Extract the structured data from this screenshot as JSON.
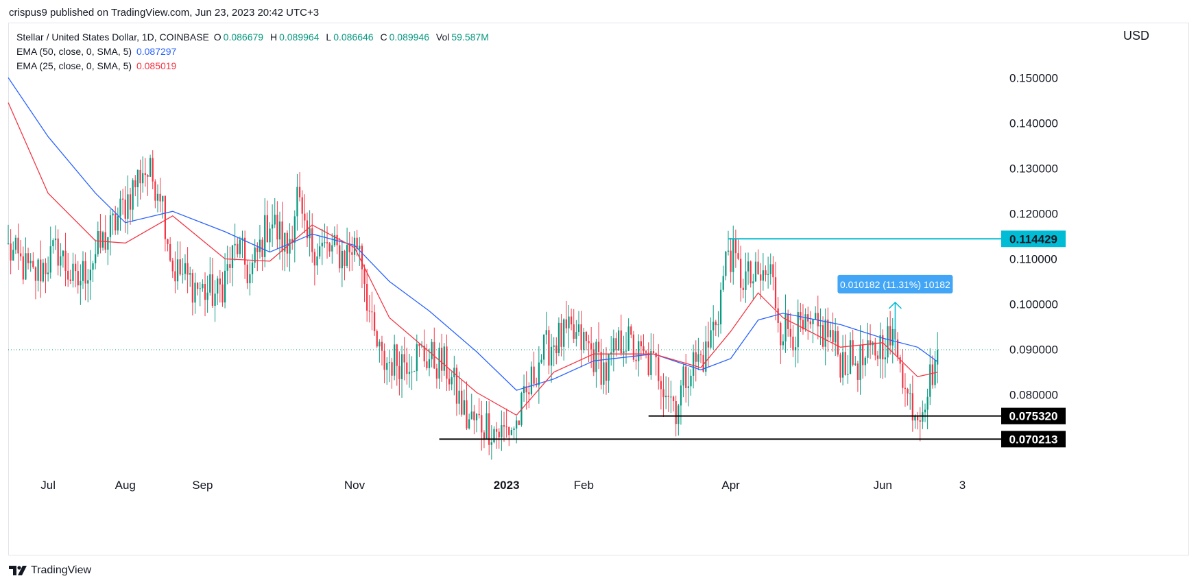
{
  "header": {
    "published": "crispus9 published on TradingView.com, Jun 23, 2023 20:42 UTC+3"
  },
  "legend": {
    "title": "Stellar / United States Dollar, 1D, COINBASE",
    "ohlc": [
      {
        "key": "O",
        "value": "0.086679"
      },
      {
        "key": "H",
        "value": "0.089964"
      },
      {
        "key": "L",
        "value": "0.086646"
      },
      {
        "key": "C",
        "value": "0.089946"
      },
      {
        "key": "Vol",
        "value": "59.587M"
      }
    ],
    "ema50_label": "EMA (50, close, 0, SMA, 5)",
    "ema50_value": "0.087297",
    "ema25_label": "EMA (25, close, 0, SMA, 5)",
    "ema25_value": "0.085019"
  },
  "currency": "USD",
  "footer": {
    "brand": "TradingView"
  },
  "colors": {
    "up": "#089981",
    "down": "#f23645",
    "ema50": "#2962ff",
    "ema25": "#f23645",
    "cyan": "#00bcd4",
    "measure": "#42a5f5",
    "black": "#000000"
  },
  "chart_data": {
    "type": "candlestick",
    "symbol": "Stellar / United States Dollar",
    "interval": "1D",
    "exchange": "COINBASE",
    "ylim": [
      0.063,
      0.162
    ],
    "y_ticks": [
      "0.150000",
      "0.140000",
      "0.130000",
      "0.120000",
      "0.110000",
      "0.100000",
      "0.090000",
      "0.080000"
    ],
    "y_tick_values": [
      0.15,
      0.14,
      0.13,
      0.12,
      0.11,
      0.1,
      0.09,
      0.08
    ],
    "x_ticks": [
      {
        "label": "Jul",
        "date": "2022-07-01"
      },
      {
        "label": "Aug",
        "date": "2022-08-01"
      },
      {
        "label": "Sep",
        "date": "2022-09-01"
      },
      {
        "label": "Nov",
        "date": "2022-11-01"
      },
      {
        "label": "2023",
        "date": "2023-01-01",
        "bold": true
      },
      {
        "label": "Feb",
        "date": "2023-02-01"
      },
      {
        "label": "Apr",
        "date": "2023-04-01"
      },
      {
        "label": "Jun",
        "date": "2023-06-01"
      },
      {
        "label": "3",
        "date": "2023-07-03"
      }
    ],
    "x_range": [
      "2022-06-15",
      "2023-07-18"
    ],
    "current_price": 0.089946,
    "price_series": [
      {
        "date": "2022-06-15",
        "close": 0.112
      },
      {
        "date": "2022-06-25",
        "close": 0.106
      },
      {
        "date": "2022-07-05",
        "close": 0.112
      },
      {
        "date": "2022-07-12",
        "close": 0.104
      },
      {
        "date": "2022-07-20",
        "close": 0.111
      },
      {
        "date": "2022-07-28",
        "close": 0.118
      },
      {
        "date": "2022-08-08",
        "close": 0.13
      },
      {
        "date": "2022-08-15",
        "close": 0.126
      },
      {
        "date": "2022-08-20",
        "close": 0.108
      },
      {
        "date": "2022-09-01",
        "close": 0.103
      },
      {
        "date": "2022-09-07",
        "close": 0.102
      },
      {
        "date": "2022-09-15",
        "close": 0.113
      },
      {
        "date": "2022-09-20",
        "close": 0.106
      },
      {
        "date": "2022-09-28",
        "close": 0.119
      },
      {
        "date": "2022-10-05",
        "close": 0.112
      },
      {
        "date": "2022-10-09",
        "close": 0.124
      },
      {
        "date": "2022-10-12",
        "close": 0.114
      },
      {
        "date": "2022-10-20",
        "close": 0.112
      },
      {
        "date": "2022-10-28",
        "close": 0.111
      },
      {
        "date": "2022-11-03",
        "close": 0.114
      },
      {
        "date": "2022-11-08",
        "close": 0.094
      },
      {
        "date": "2022-11-12",
        "close": 0.087
      },
      {
        "date": "2022-11-20",
        "close": 0.088
      },
      {
        "date": "2022-11-28",
        "close": 0.089
      },
      {
        "date": "2022-12-08",
        "close": 0.086
      },
      {
        "date": "2022-12-16",
        "close": 0.0745
      },
      {
        "date": "2022-12-24",
        "close": 0.0735
      },
      {
        "date": "2022-12-30",
        "close": 0.0715
      },
      {
        "date": "2023-01-05",
        "close": 0.0735
      },
      {
        "date": "2023-01-10",
        "close": 0.081
      },
      {
        "date": "2023-01-14",
        "close": 0.088
      },
      {
        "date": "2023-01-20",
        "close": 0.092
      },
      {
        "date": "2023-01-27",
        "close": 0.093
      },
      {
        "date": "2023-02-02",
        "close": 0.091
      },
      {
        "date": "2023-02-10",
        "close": 0.085
      },
      {
        "date": "2023-02-17",
        "close": 0.093
      },
      {
        "date": "2023-02-22",
        "close": 0.089
      },
      {
        "date": "2023-03-03",
        "close": 0.0855
      },
      {
        "date": "2023-03-10",
        "close": 0.0775
      },
      {
        "date": "2023-03-15",
        "close": 0.086
      },
      {
        "date": "2023-03-22",
        "close": 0.089
      },
      {
        "date": "2023-03-27",
        "close": 0.099
      },
      {
        "date": "2023-03-31",
        "close": 0.1125
      },
      {
        "date": "2023-04-05",
        "close": 0.106
      },
      {
        "date": "2023-04-12",
        "close": 0.105
      },
      {
        "date": "2023-04-17",
        "close": 0.107
      },
      {
        "date": "2023-04-21",
        "close": 0.095
      },
      {
        "date": "2023-05-01",
        "close": 0.0935
      },
      {
        "date": "2023-05-10",
        "close": 0.094
      },
      {
        "date": "2023-05-15",
        "close": 0.088
      },
      {
        "date": "2023-05-25",
        "close": 0.087
      },
      {
        "date": "2023-06-02",
        "close": 0.0925
      },
      {
        "date": "2023-06-08",
        "close": 0.09
      },
      {
        "date": "2023-06-10",
        "close": 0.0805
      },
      {
        "date": "2023-06-15",
        "close": 0.0765
      },
      {
        "date": "2023-06-19",
        "close": 0.0815
      },
      {
        "date": "2023-06-23",
        "close": 0.0899
      }
    ],
    "ema50": [
      {
        "date": "2022-06-15",
        "value": 0.15
      },
      {
        "date": "2022-07-01",
        "value": 0.137
      },
      {
        "date": "2022-07-20",
        "value": 0.1245
      },
      {
        "date": "2022-08-01",
        "value": 0.118
      },
      {
        "date": "2022-08-20",
        "value": 0.1205
      },
      {
        "date": "2022-09-10",
        "value": 0.116
      },
      {
        "date": "2022-09-28",
        "value": 0.1115
      },
      {
        "date": "2022-10-15",
        "value": 0.1155
      },
      {
        "date": "2022-11-01",
        "value": 0.113
      },
      {
        "date": "2022-11-15",
        "value": 0.105
      },
      {
        "date": "2022-12-01",
        "value": 0.0985
      },
      {
        "date": "2022-12-20",
        "value": 0.0895
      },
      {
        "date": "2023-01-05",
        "value": 0.081
      },
      {
        "date": "2023-01-20",
        "value": 0.0835
      },
      {
        "date": "2023-02-05",
        "value": 0.0875
      },
      {
        "date": "2023-03-01",
        "value": 0.089
      },
      {
        "date": "2023-03-20",
        "value": 0.0855
      },
      {
        "date": "2023-04-01",
        "value": 0.088
      },
      {
        "date": "2023-04-12",
        "value": 0.0965
      },
      {
        "date": "2023-04-22",
        "value": 0.098
      },
      {
        "date": "2023-05-15",
        "value": 0.0955
      },
      {
        "date": "2023-06-01",
        "value": 0.0925
      },
      {
        "date": "2023-06-15",
        "value": 0.0905
      },
      {
        "date": "2023-06-23",
        "value": 0.0873
      }
    ],
    "ema25": [
      {
        "date": "2022-06-15",
        "value": 0.1445
      },
      {
        "date": "2022-07-01",
        "value": 0.1245
      },
      {
        "date": "2022-07-20",
        "value": 0.114
      },
      {
        "date": "2022-08-01",
        "value": 0.1135
      },
      {
        "date": "2022-08-20",
        "value": 0.1195
      },
      {
        "date": "2022-09-10",
        "value": 0.11
      },
      {
        "date": "2022-09-28",
        "value": 0.1095
      },
      {
        "date": "2022-10-15",
        "value": 0.1175
      },
      {
        "date": "2022-11-01",
        "value": 0.1125
      },
      {
        "date": "2022-11-15",
        "value": 0.097
      },
      {
        "date": "2022-12-01",
        "value": 0.0895
      },
      {
        "date": "2022-12-20",
        "value": 0.0805
      },
      {
        "date": "2023-01-05",
        "value": 0.0755
      },
      {
        "date": "2023-01-20",
        "value": 0.085
      },
      {
        "date": "2023-02-05",
        "value": 0.089
      },
      {
        "date": "2023-03-01",
        "value": 0.089
      },
      {
        "date": "2023-03-20",
        "value": 0.086
      },
      {
        "date": "2023-04-01",
        "value": 0.094
      },
      {
        "date": "2023-04-12",
        "value": 0.1025
      },
      {
        "date": "2023-04-22",
        "value": 0.097
      },
      {
        "date": "2023-05-15",
        "value": 0.0905
      },
      {
        "date": "2023-06-01",
        "value": 0.0915
      },
      {
        "date": "2023-06-15",
        "value": 0.084
      },
      {
        "date": "2023-06-23",
        "value": 0.085
      }
    ],
    "annotations": {
      "resistance": {
        "value": 0.114429,
        "label": "0.114429",
        "from_date": "2023-03-31"
      },
      "support_1": {
        "value": 0.07532,
        "label": "0.075320",
        "from_date": "2023-02-27"
      },
      "support_2": {
        "value": 0.070213,
        "label": "0.070213",
        "from_date": "2022-12-05"
      },
      "measure": {
        "label": "0.010182 (11.31%) 10182",
        "from_date": "2023-06-06",
        "from_value": 0.0903,
        "to_value": 0.1004
      }
    }
  }
}
